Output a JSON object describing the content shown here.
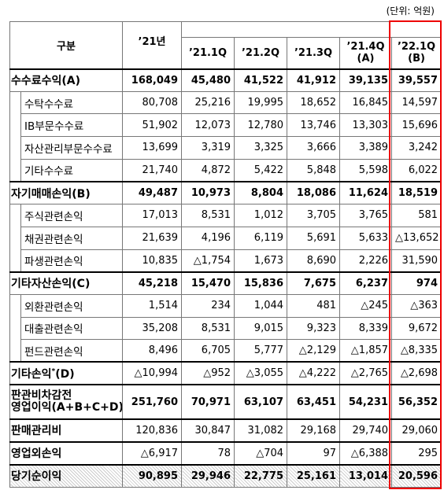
{
  "unit": "(단위: 억원)",
  "header": {
    "label": "구분",
    "year": "’21년",
    "quarters": [
      {
        "label": "’21.1Q"
      },
      {
        "label": "’21.2Q"
      },
      {
        "label": "’21.3Q"
      },
      {
        "label": "’21.4Q",
        "sub": "(A)"
      },
      {
        "label": "’22.1Q",
        "sub": "(B)"
      }
    ]
  },
  "table": {
    "rows": [
      {
        "label": "수수료수익(A)",
        "main": true,
        "bold": true,
        "values": [
          "168,049",
          "45,480",
          "41,522",
          "41,912",
          "39,135",
          "39,557"
        ]
      },
      {
        "label": "수탁수수료",
        "values": [
          "80,708",
          "25,216",
          "19,995",
          "18,652",
          "16,845",
          "14,597"
        ]
      },
      {
        "label": "IB부문수수료",
        "values": [
          "51,902",
          "12,073",
          "12,780",
          "13,746",
          "13,303",
          "15,696"
        ]
      },
      {
        "label": "자산관리부문수수료",
        "values": [
          "13,699",
          "3,319",
          "3,325",
          "3,666",
          "3,389",
          "3,242"
        ]
      },
      {
        "label": "기타수수료",
        "values": [
          "21,740",
          "4,872",
          "5,422",
          "5,848",
          "5,598",
          "6,022"
        ]
      },
      {
        "label": "자기매매손익(B)",
        "main": true,
        "bold": true,
        "values": [
          "49,487",
          "10,973",
          "8,804",
          "18,086",
          "11,624",
          "18,519"
        ]
      },
      {
        "label": "주식관련손익",
        "values": [
          "17,013",
          "8,531",
          "1,012",
          "3,705",
          "3,765",
          "581"
        ]
      },
      {
        "label": "채권관련손익",
        "values": [
          "21,639",
          "4,196",
          "6,119",
          "5,691",
          "5,633",
          "△13,652"
        ]
      },
      {
        "label": "파생관련손익",
        "values": [
          "10,835",
          "△1,754",
          "1,673",
          "8,690",
          "2,226",
          "31,590"
        ]
      },
      {
        "label": "기타자산손익(C)",
        "main": true,
        "bold": true,
        "values": [
          "45,218",
          "15,470",
          "15,836",
          "7,675",
          "6,237",
          "974"
        ]
      },
      {
        "label": "외환관련손익",
        "values": [
          "1,514",
          "234",
          "1,044",
          "481",
          "△245",
          "△363"
        ]
      },
      {
        "label": "대출관련손익",
        "values": [
          "35,208",
          "8,531",
          "9,015",
          "9,323",
          "8,339",
          "9,672"
        ]
      },
      {
        "label": "펀드관련손익",
        "values": [
          "8,496",
          "6,705",
          "5,777",
          "△2,129",
          "△1,857",
          "△8,335"
        ]
      },
      {
        "label": "기타손익",
        "note": "*",
        "suffix": "(D)",
        "main": true,
        "values": [
          "△10,994",
          "△952",
          "△3,055",
          "△4,222",
          "△2,765",
          "△2,698"
        ]
      },
      {
        "label": "판관비차감전",
        "label2": "영업이익(A+B+C+D)",
        "main": true,
        "bold": true,
        "tall": true,
        "values": [
          "251,760",
          "70,971",
          "63,107",
          "63,451",
          "54,231",
          "56,352"
        ]
      },
      {
        "label": "판매관리비",
        "main": true,
        "values": [
          "120,836",
          "30,847",
          "31,082",
          "29,168",
          "29,740",
          "29,060"
        ]
      },
      {
        "label": "영업외손익",
        "main": true,
        "values": [
          "△6,917",
          "78",
          "△704",
          "97",
          "△6,388",
          "295"
        ]
      },
      {
        "label": "당기순이익",
        "main": true,
        "bold": true,
        "hatch": true,
        "values": [
          "90,895",
          "29,946",
          "22,775",
          "25,161",
          "13,014",
          "20,596"
        ]
      }
    ]
  }
}
